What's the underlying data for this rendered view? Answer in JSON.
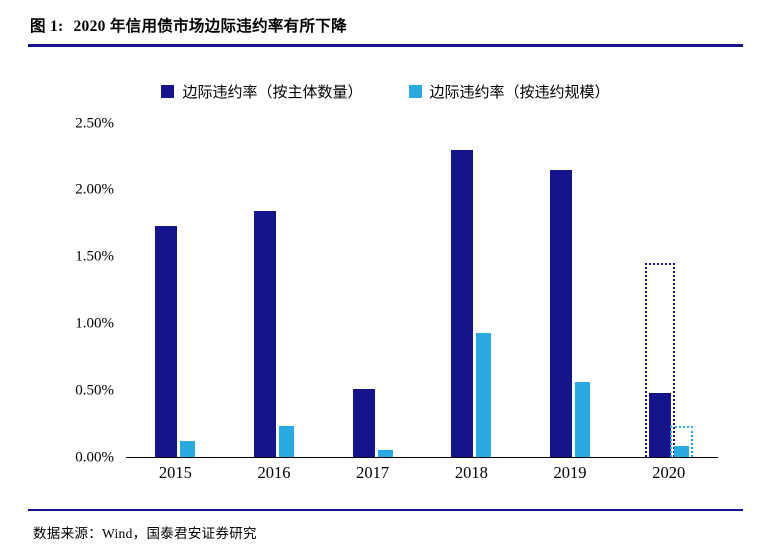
{
  "figure": {
    "title_prefix": "图 1:",
    "title": "2020 年信用债市场边际违约率有所下降",
    "source": "数据来源：Wind，国泰君安证券研究"
  },
  "colors": {
    "navy": "#14148C",
    "cyan": "#29ABE2",
    "rule": "#14148C",
    "axis": "#000000"
  },
  "chart_data": {
    "type": "bar",
    "title": "2020 年信用债市场边际违约率有所下降",
    "categories": [
      "2015",
      "2016",
      "2017",
      "2018",
      "2019",
      "2020"
    ],
    "series": [
      {
        "name": "边际违约率（按主体数量）",
        "color": "#14148C",
        "values": [
          1.73,
          1.84,
          0.51,
          2.3,
          2.15,
          0.48
        ]
      },
      {
        "name": "边际违约率（按违约规模）",
        "color": "#29ABE2",
        "values": [
          0.12,
          0.23,
          0.05,
          0.93,
          0.56,
          0.08
        ]
      }
    ],
    "annotations": [
      {
        "category": "2020",
        "series_index": 0,
        "value": 1.45,
        "style": "dotted-outline"
      },
      {
        "category": "2020",
        "series_index": 1,
        "value": 0.23,
        "style": "dotted-outline"
      }
    ],
    "xlabel": "",
    "ylabel": "",
    "ylim": [
      0,
      2.5
    ],
    "yticks": [
      {
        "label": "0.00%",
        "value": 0
      },
      {
        "label": "0.50%",
        "value": 0.5
      },
      {
        "label": "1.00%",
        "value": 1.0
      },
      {
        "label": "1.50%",
        "value": 1.5
      },
      {
        "label": "2.00%",
        "value": 2.0
      },
      {
        "label": "2.50%",
        "value": 2.5
      }
    ],
    "grid": false,
    "legend_position": "top"
  }
}
